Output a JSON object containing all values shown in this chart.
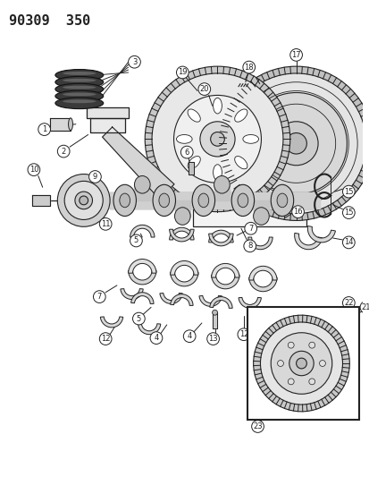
{
  "title": "90309  350",
  "bg": "#ffffff",
  "lc": "#222222",
  "fig_w": 4.14,
  "fig_h": 5.33,
  "dpi": 100
}
